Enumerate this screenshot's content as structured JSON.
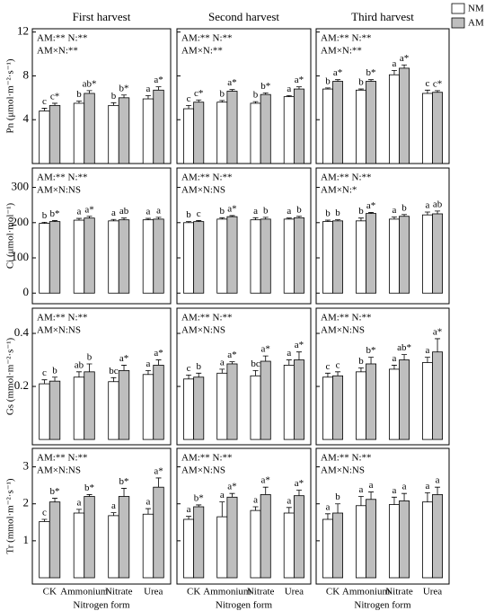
{
  "chart_data": [
    {
      "type": "bar",
      "title": "First harvest",
      "ylabel": "Pn (μmol·m⁻²·s⁻¹)",
      "annotations": [
        "AM:** N:**",
        "AM×N:**"
      ],
      "ylim": [
        0,
        12.3
      ],
      "yticks": [
        4,
        8,
        12
      ],
      "series": [
        {
          "color": "#ffffff",
          "values": [
            4.8,
            5.5,
            5.3,
            5.9
          ],
          "errors": [
            0.25,
            0.2,
            0.25,
            0.3
          ],
          "letters": [
            "c",
            "b",
            "b",
            "a"
          ]
        },
        {
          "color": "#bebebe",
          "values": [
            5.3,
            6.4,
            6.0,
            6.7
          ],
          "errors": [
            0.2,
            0.25,
            0.25,
            0.3
          ],
          "letters": [
            "c*",
            "ab*",
            "b*",
            "a*"
          ]
        }
      ]
    },
    {
      "type": "bar",
      "title": "Second harvest",
      "annotations": [
        "AM:** N:**",
        "AM×N:**"
      ],
      "ylim": [
        0,
        12.3
      ],
      "yticks": [
        4,
        8,
        12
      ],
      "series": [
        {
          "color": "#ffffff",
          "values": [
            5.0,
            5.6,
            5.5,
            6.1
          ],
          "errors": [
            0.3,
            0.15,
            0.15,
            0.1
          ],
          "letters": [
            "c",
            "b",
            "b",
            "a"
          ]
        },
        {
          "color": "#bebebe",
          "values": [
            5.6,
            6.6,
            6.3,
            6.8
          ],
          "errors": [
            0.2,
            0.15,
            0.15,
            0.2
          ],
          "letters": [
            "c*",
            "a*",
            "b*",
            "a*"
          ]
        }
      ]
    },
    {
      "type": "bar",
      "title": "Third harvest",
      "annotations": [
        "AM:** N:**",
        "AM×N:**"
      ],
      "ylim": [
        0,
        12.3
      ],
      "yticks": [
        4,
        8,
        12
      ],
      "series": [
        {
          "name": "NM",
          "color": "#ffffff",
          "values": [
            6.8,
            6.7,
            8.1,
            6.4
          ],
          "errors": [
            0.1,
            0.1,
            0.4,
            0.3
          ],
          "letters": [
            "b",
            "b",
            "a",
            "c"
          ]
        },
        {
          "name": "AM",
          "color": "#bebebe",
          "values": [
            7.5,
            7.5,
            8.7,
            6.5
          ],
          "errors": [
            0.15,
            0.15,
            0.3,
            0.15
          ],
          "letters": [
            "a*",
            "b*",
            "a*",
            "c*"
          ]
        }
      ]
    },
    {
      "type": "bar",
      "ylabel": "Ci (μmol·mol⁻¹)",
      "annotations": [
        "AM:** N:**",
        "AM×N:NS"
      ],
      "ylim": [
        -30,
        355
      ],
      "yticks": [
        0,
        100,
        200,
        300
      ],
      "series": [
        {
          "color": "#ffffff",
          "values": [
            198,
            207,
            205,
            208
          ],
          "errors": [
            3,
            5,
            4,
            4
          ],
          "letters": [
            "b",
            "a",
            "a",
            "a"
          ]
        },
        {
          "color": "#bebebe",
          "values": [
            203,
            213,
            208,
            210
          ],
          "errors": [
            3,
            5,
            5,
            5
          ],
          "letters": [
            "b*",
            "a*",
            "ab",
            "a"
          ]
        }
      ]
    },
    {
      "type": "bar",
      "annotations": [
        "AM:** N:**",
        "AM×N:NS"
      ],
      "ylim": [
        -30,
        355
      ],
      "yticks": [
        0,
        100,
        200,
        300
      ],
      "series": [
        {
          "color": "#ffffff",
          "values": [
            200,
            210,
            208,
            210
          ],
          "errors": [
            3,
            4,
            6,
            3
          ],
          "letters": [
            "b",
            "b",
            "a",
            "a"
          ]
        },
        {
          "color": "#bebebe",
          "values": [
            203,
            217,
            210,
            214
          ],
          "errors": [
            3,
            3,
            5,
            4
          ],
          "letters": [
            "c",
            "a*",
            "b",
            "b"
          ]
        }
      ]
    },
    {
      "type": "bar",
      "annotations": [
        "AM:** N:**",
        "AM×N:*"
      ],
      "ylim": [
        -30,
        355
      ],
      "yticks": [
        0,
        100,
        200,
        300
      ],
      "series": [
        {
          "color": "#ffffff",
          "values": [
            203,
            205,
            210,
            222
          ],
          "errors": [
            4,
            8,
            6,
            8
          ],
          "letters": [
            "b",
            "b",
            "a",
            "a"
          ]
        },
        {
          "color": "#bebebe",
          "values": [
            205,
            226,
            218,
            225
          ],
          "errors": [
            3,
            3,
            5,
            8
          ],
          "letters": [
            "b",
            "a*",
            "b",
            "ab"
          ]
        }
      ]
    },
    {
      "type": "bar",
      "ylabel": "Gs (mmol·m⁻²·s⁻¹)",
      "annotations": [
        "AM:** N:**",
        "AM×N:NS"
      ],
      "ylim": [
        -0.02,
        0.495
      ],
      "yticks": [
        0.2,
        0.4
      ],
      "series": [
        {
          "color": "#ffffff",
          "values": [
            0.21,
            0.235,
            0.218,
            0.245
          ],
          "errors": [
            0.015,
            0.02,
            0.015,
            0.015
          ],
          "letters": [
            "c",
            "ab",
            "bc",
            "a"
          ]
        },
        {
          "color": "#bebebe",
          "values": [
            0.22,
            0.255,
            0.26,
            0.28
          ],
          "errors": [
            0.015,
            0.03,
            0.02,
            0.02
          ],
          "letters": [
            "b",
            "b",
            "a*",
            "a*"
          ]
        }
      ]
    },
    {
      "type": "bar",
      "annotations": [
        "AM:** N:**",
        "AM×N:NS"
      ],
      "ylim": [
        -0.02,
        0.495
      ],
      "yticks": [
        0.2,
        0.4
      ],
      "series": [
        {
          "color": "#ffffff",
          "values": [
            0.228,
            0.25,
            0.24,
            0.28
          ],
          "errors": [
            0.015,
            0.015,
            0.02,
            0.02
          ],
          "letters": [
            "c",
            "a",
            "bc",
            "a"
          ]
        },
        {
          "color": "#bebebe",
          "values": [
            0.235,
            0.285,
            0.295,
            0.3
          ],
          "errors": [
            0.015,
            0.008,
            0.02,
            0.03
          ],
          "letters": [
            "b",
            "a*",
            "a*",
            "a*"
          ]
        }
      ]
    },
    {
      "type": "bar",
      "annotations": [
        "AM:** N:**",
        "AM×N:NS"
      ],
      "ylim": [
        -0.02,
        0.495
      ],
      "yticks": [
        0.2,
        0.4
      ],
      "series": [
        {
          "color": "#ffffff",
          "values": [
            0.235,
            0.255,
            0.265,
            0.29
          ],
          "errors": [
            0.015,
            0.015,
            0.015,
            0.02
          ],
          "letters": [
            "c",
            "b",
            "a",
            "a"
          ]
        },
        {
          "color": "#bebebe",
          "values": [
            0.24,
            0.285,
            0.3,
            0.33
          ],
          "errors": [
            0.015,
            0.025,
            0.02,
            0.05
          ],
          "letters": [
            "c",
            "b*",
            "ab*",
            "a*"
          ]
        }
      ]
    },
    {
      "type": "bar",
      "ylabel": "Tr (mmol·m⁻²·s⁻¹)",
      "xlabel": "Nitrogen form",
      "categories": [
        "CK",
        "Ammonium",
        "Nitrate",
        "Urea"
      ],
      "annotations": [
        "AM:** N:**",
        "AM×N:NS"
      ],
      "ylim": [
        -0.17,
        3.5
      ],
      "yticks": [
        1,
        2,
        3
      ],
      "series": [
        {
          "color": "#ffffff",
          "values": [
            1.52,
            1.75,
            1.68,
            1.72
          ],
          "errors": [
            0.06,
            0.1,
            0.08,
            0.15
          ],
          "letters": [
            "c",
            "a",
            "a",
            "a"
          ]
        },
        {
          "color": "#bebebe",
          "values": [
            2.05,
            2.2,
            2.2,
            2.45
          ],
          "errors": [
            0.1,
            0.05,
            0.22,
            0.25
          ],
          "letters": [
            "b*",
            "b*",
            "b*",
            "a*"
          ]
        }
      ]
    },
    {
      "type": "bar",
      "xlabel": "Nitrogen form",
      "categories": [
        "CK",
        "Ammonium",
        "Nitrate",
        "Urea"
      ],
      "annotations": [
        "AM:** N:**",
        "AM×N:NS"
      ],
      "ylim": [
        -0.17,
        3.5
      ],
      "yticks": [
        1,
        2,
        3
      ],
      "series": [
        {
          "color": "#ffffff",
          "values": [
            1.58,
            1.65,
            1.82,
            1.75
          ],
          "errors": [
            0.08,
            0.4,
            0.1,
            0.15
          ],
          "letters": [
            "a",
            "a",
            "a",
            "a"
          ]
        },
        {
          "color": "#bebebe",
          "values": [
            1.92,
            2.18,
            2.25,
            2.22
          ],
          "errors": [
            0.05,
            0.1,
            0.2,
            0.15
          ],
          "letters": [
            "b*",
            "a*",
            "a*",
            "a*"
          ]
        }
      ]
    },
    {
      "type": "bar",
      "xlabel": "Nitrogen form",
      "categories": [
        "CK",
        "Ammonium",
        "Nitrate",
        "Urea"
      ],
      "annotations": [
        "AM:** N:**",
        "AM×N:NS"
      ],
      "ylim": [
        -0.17,
        3.5
      ],
      "yticks": [
        1,
        2,
        3
      ],
      "series": [
        {
          "color": "#ffffff",
          "values": [
            1.58,
            1.95,
            1.98,
            2.05
          ],
          "errors": [
            0.15,
            0.25,
            0.2,
            0.25
          ],
          "letters": [
            "a",
            "a",
            "a",
            "a"
          ]
        },
        {
          "color": "#bebebe",
          "values": [
            1.75,
            2.12,
            2.08,
            2.25
          ],
          "errors": [
            0.25,
            0.2,
            0.2,
            0.2
          ],
          "letters": [
            "b",
            "a",
            "a",
            "a"
          ]
        }
      ]
    }
  ]
}
